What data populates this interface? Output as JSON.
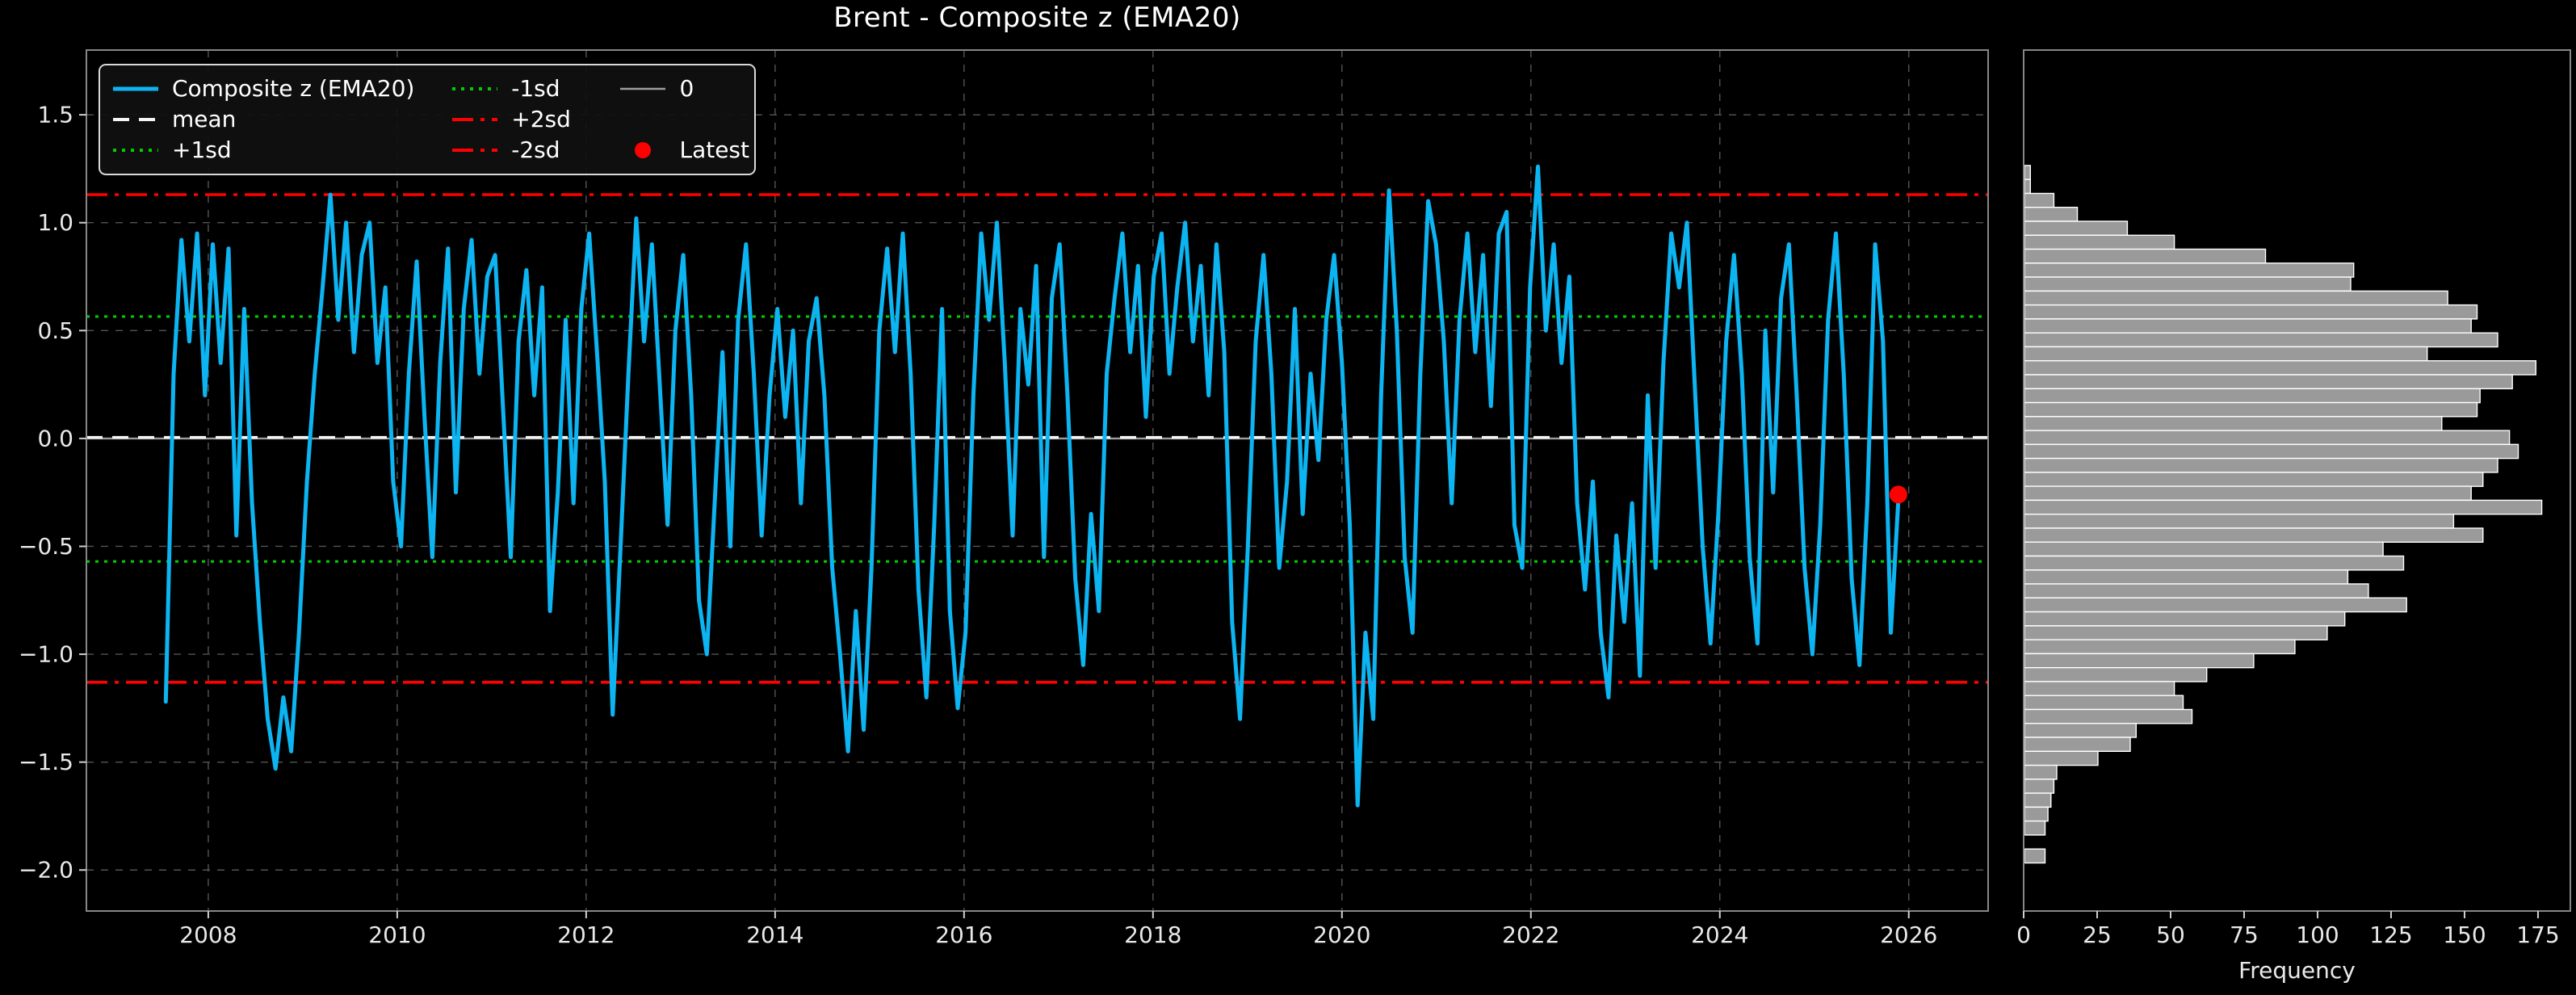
{
  "title": "Brent - Composite z (EMA20)",
  "colors": {
    "background": "#000000",
    "series": "#0CB5F2",
    "mean": "#f5f5f5",
    "sd1": "#00cc00",
    "sd2": "#ff0000",
    "zero": "#9e9e9e",
    "latest": "#ff0000",
    "grid": "#545454",
    "frame": "#878787",
    "tick_text": "#e9e9e9",
    "hist_bar_fill": "#9a9a9a",
    "hist_bar_edge": "#ffffff"
  },
  "legend": {
    "entries": [
      {
        "label": "Composite z (EMA20)",
        "style": "solid",
        "color": "#0CB5F2",
        "width": 5
      },
      {
        "label": "mean",
        "style": "dashed",
        "color": "#f5f5f5",
        "width": 4
      },
      {
        "label": "+1sd",
        "style": "dotted",
        "color": "#00cc00",
        "width": 4
      },
      {
        "label": "-1sd",
        "style": "dotted",
        "color": "#00cc00",
        "width": 4
      },
      {
        "label": "+2sd",
        "style": "dashdot",
        "color": "#ff0000",
        "width": 4
      },
      {
        "label": "-2sd",
        "style": "dashdot",
        "color": "#ff0000",
        "width": 4
      },
      {
        "label": "0",
        "style": "solid",
        "color": "#9e9e9e",
        "width": 2.5
      },
      {
        "label": "Latest",
        "style": "marker",
        "color": "#ff0000"
      }
    ]
  },
  "chart_data": [
    {
      "type": "line",
      "title": "Brent - Composite z (EMA20)",
      "xlabel": "",
      "ylabel": "",
      "xlim": [
        2006.71,
        2026.84
      ],
      "ylim": [
        -2.19,
        1.8
      ],
      "grid": true,
      "legend_position": "upper left",
      "xticks": {
        "values": [
          2008,
          2010,
          2012,
          2014,
          2016,
          2018,
          2020,
          2022,
          2024,
          2026
        ],
        "labels": [
          "2008",
          "2010",
          "2012",
          "2014",
          "2016",
          "2018",
          "2020",
          "2022",
          "2024",
          "2026"
        ]
      },
      "yticks": {
        "values": [
          1.5,
          1.0,
          0.5,
          0.0,
          -0.5,
          -1.0,
          -1.5,
          -2.0
        ],
        "labels": [
          "1.5",
          "1.0",
          "0.5",
          "0.0",
          "−0.5",
          "−1.0",
          "−1.5",
          "−2.0"
        ]
      },
      "ref_lines": [
        {
          "name": "zero",
          "label": "0",
          "value": 0.0,
          "style": "solid",
          "color": "#9e9e9e",
          "width": 2.4
        },
        {
          "name": "mean",
          "label": "mean",
          "value": 0.005,
          "style": "dashed",
          "color": "#f5f5f5",
          "width": 3.4
        },
        {
          "name": "plus1sd",
          "label": "+1sd",
          "value": 0.565,
          "style": "dotted",
          "color": "#00cc00",
          "width": 3.2
        },
        {
          "name": "minus1sd",
          "label": "-1sd",
          "value": -0.57,
          "style": "dotted",
          "color": "#00cc00",
          "width": 3.2
        },
        {
          "name": "plus2sd",
          "label": "+2sd",
          "value": 1.13,
          "style": "dashdot",
          "color": "#ff0000",
          "width": 3.6
        },
        {
          "name": "minus2sd",
          "label": "-2sd",
          "value": -1.13,
          "style": "dashdot",
          "color": "#ff0000",
          "width": 3.6
        }
      ],
      "series": {
        "name": "Composite z (EMA20)",
        "color": "#0CB5F2",
        "t_start": 2007.55,
        "t_step": 0.083,
        "values": [
          -1.22,
          0.3,
          0.92,
          0.45,
          0.95,
          0.2,
          0.9,
          0.35,
          0.88,
          -0.45,
          0.6,
          -0.3,
          -0.85,
          -1.3,
          -1.53,
          -1.2,
          -1.45,
          -0.9,
          -0.2,
          0.3,
          0.7,
          1.13,
          0.55,
          1.0,
          0.4,
          0.85,
          1.0,
          0.35,
          0.7,
          -0.2,
          -0.5,
          0.3,
          0.82,
          0.1,
          -0.55,
          0.35,
          0.88,
          -0.25,
          0.6,
          0.92,
          0.3,
          0.75,
          0.85,
          0.15,
          -0.55,
          0.45,
          0.78,
          0.2,
          0.7,
          -0.8,
          -0.25,
          0.55,
          -0.3,
          0.6,
          0.95,
          0.4,
          -0.2,
          -1.28,
          -0.5,
          0.3,
          1.02,
          0.45,
          0.9,
          0.25,
          -0.4,
          0.5,
          0.85,
          0.2,
          -0.75,
          -1.0,
          -0.3,
          0.4,
          -0.5,
          0.55,
          0.9,
          0.3,
          -0.45,
          0.2,
          0.6,
          0.1,
          0.5,
          -0.3,
          0.45,
          0.65,
          0.2,
          -0.6,
          -1.0,
          -1.45,
          -0.8,
          -1.35,
          -0.6,
          0.5,
          0.88,
          0.4,
          0.95,
          0.3,
          -0.7,
          -1.2,
          -0.4,
          0.6,
          -0.8,
          -1.25,
          -0.9,
          0.2,
          0.95,
          0.55,
          1.0,
          0.35,
          -0.45,
          0.6,
          0.25,
          0.8,
          -0.55,
          0.65,
          0.9,
          0.2,
          -0.65,
          -1.05,
          -0.35,
          -0.8,
          0.3,
          0.65,
          0.95,
          0.4,
          0.8,
          0.1,
          0.75,
          0.95,
          0.3,
          0.7,
          1.0,
          0.45,
          0.8,
          0.2,
          0.9,
          0.4,
          -0.85,
          -1.3,
          -0.5,
          0.45,
          0.85,
          0.3,
          -0.6,
          -0.2,
          0.6,
          -0.35,
          0.3,
          -0.1,
          0.55,
          0.85,
          0.35,
          -0.4,
          -1.7,
          -0.9,
          -1.3,
          0.2,
          1.15,
          0.5,
          -0.55,
          -0.9,
          0.3,
          1.1,
          0.9,
          0.45,
          -0.3,
          0.55,
          0.95,
          0.4,
          0.85,
          0.15,
          0.95,
          1.05,
          -0.4,
          -0.6,
          0.7,
          1.26,
          0.5,
          0.9,
          0.35,
          0.75,
          -0.3,
          -0.7,
          -0.2,
          -0.9,
          -1.2,
          -0.45,
          -0.85,
          -0.3,
          -1.1,
          0.2,
          -0.6,
          0.35,
          0.95,
          0.7,
          1.0,
          0.25,
          -0.5,
          -0.95,
          -0.35,
          0.45,
          0.85,
          0.3,
          -0.55,
          -0.95,
          0.5,
          -0.25,
          0.65,
          0.9,
          0.2,
          -0.6,
          -1.0,
          -0.4,
          0.55,
          0.95,
          0.3,
          -0.65,
          -1.05,
          -0.3,
          0.9,
          0.45,
          -0.9,
          -0.26
        ]
      },
      "latest": {
        "label": "Latest",
        "t": 2025.89,
        "value": -0.26,
        "color": "#ff0000"
      }
    },
    {
      "type": "bar",
      "orientation": "horizontal",
      "xlabel": "Frequency",
      "grid": false,
      "xticks": {
        "values": [
          0,
          25,
          50,
          75,
          100,
          125,
          150,
          175
        ],
        "labels": [
          "0",
          "25",
          "50",
          "75",
          "100",
          "125",
          "150",
          "175"
        ]
      },
      "xlim": [
        0,
        186
      ],
      "ylim": [
        -1.84,
        1.74
      ],
      "bin_top": 1.26,
      "bin_width": 0.058,
      "values": [
        2,
        2,
        10,
        18,
        35,
        51,
        82,
        112,
        111,
        144,
        154,
        152,
        161,
        137,
        174,
        166,
        155,
        154,
        142,
        165,
        168,
        161,
        156,
        152,
        176,
        146,
        156,
        122,
        129,
        110,
        117,
        130,
        109,
        103,
        92,
        78,
        62,
        51,
        54,
        57,
        38,
        36,
        25,
        11,
        10,
        9,
        8,
        7,
        0,
        7
      ]
    }
  ]
}
